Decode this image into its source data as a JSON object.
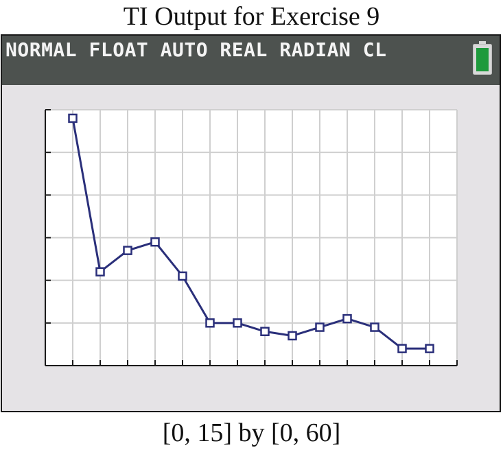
{
  "title": "TI Output for Exercise 9",
  "status_bar": {
    "text": "NORMAL FLOAT AUTO REAL RADIAN CL",
    "battery_color": "#1e9a3c"
  },
  "caption": "[0, 15] by [0, 60]",
  "colors": {
    "line": "#2a2f7a",
    "grid": "#cfcfcf",
    "screen": "#e5e3e6",
    "plot_bg": "#ffffff",
    "axis": "#1a1a1a"
  },
  "chart_data": {
    "type": "line",
    "title": "",
    "xlabel": "",
    "ylabel": "",
    "xlim": [
      0,
      15
    ],
    "ylim": [
      0,
      60
    ],
    "xscl": 1,
    "yscl": 10,
    "grid": true,
    "marker": "square",
    "x": [
      1,
      2,
      3,
      4,
      5,
      6,
      7,
      8,
      9,
      10,
      11,
      12,
      13,
      14
    ],
    "y": [
      58,
      22,
      27,
      29,
      21,
      10,
      10,
      8,
      7,
      9,
      11,
      9,
      4,
      4
    ]
  }
}
